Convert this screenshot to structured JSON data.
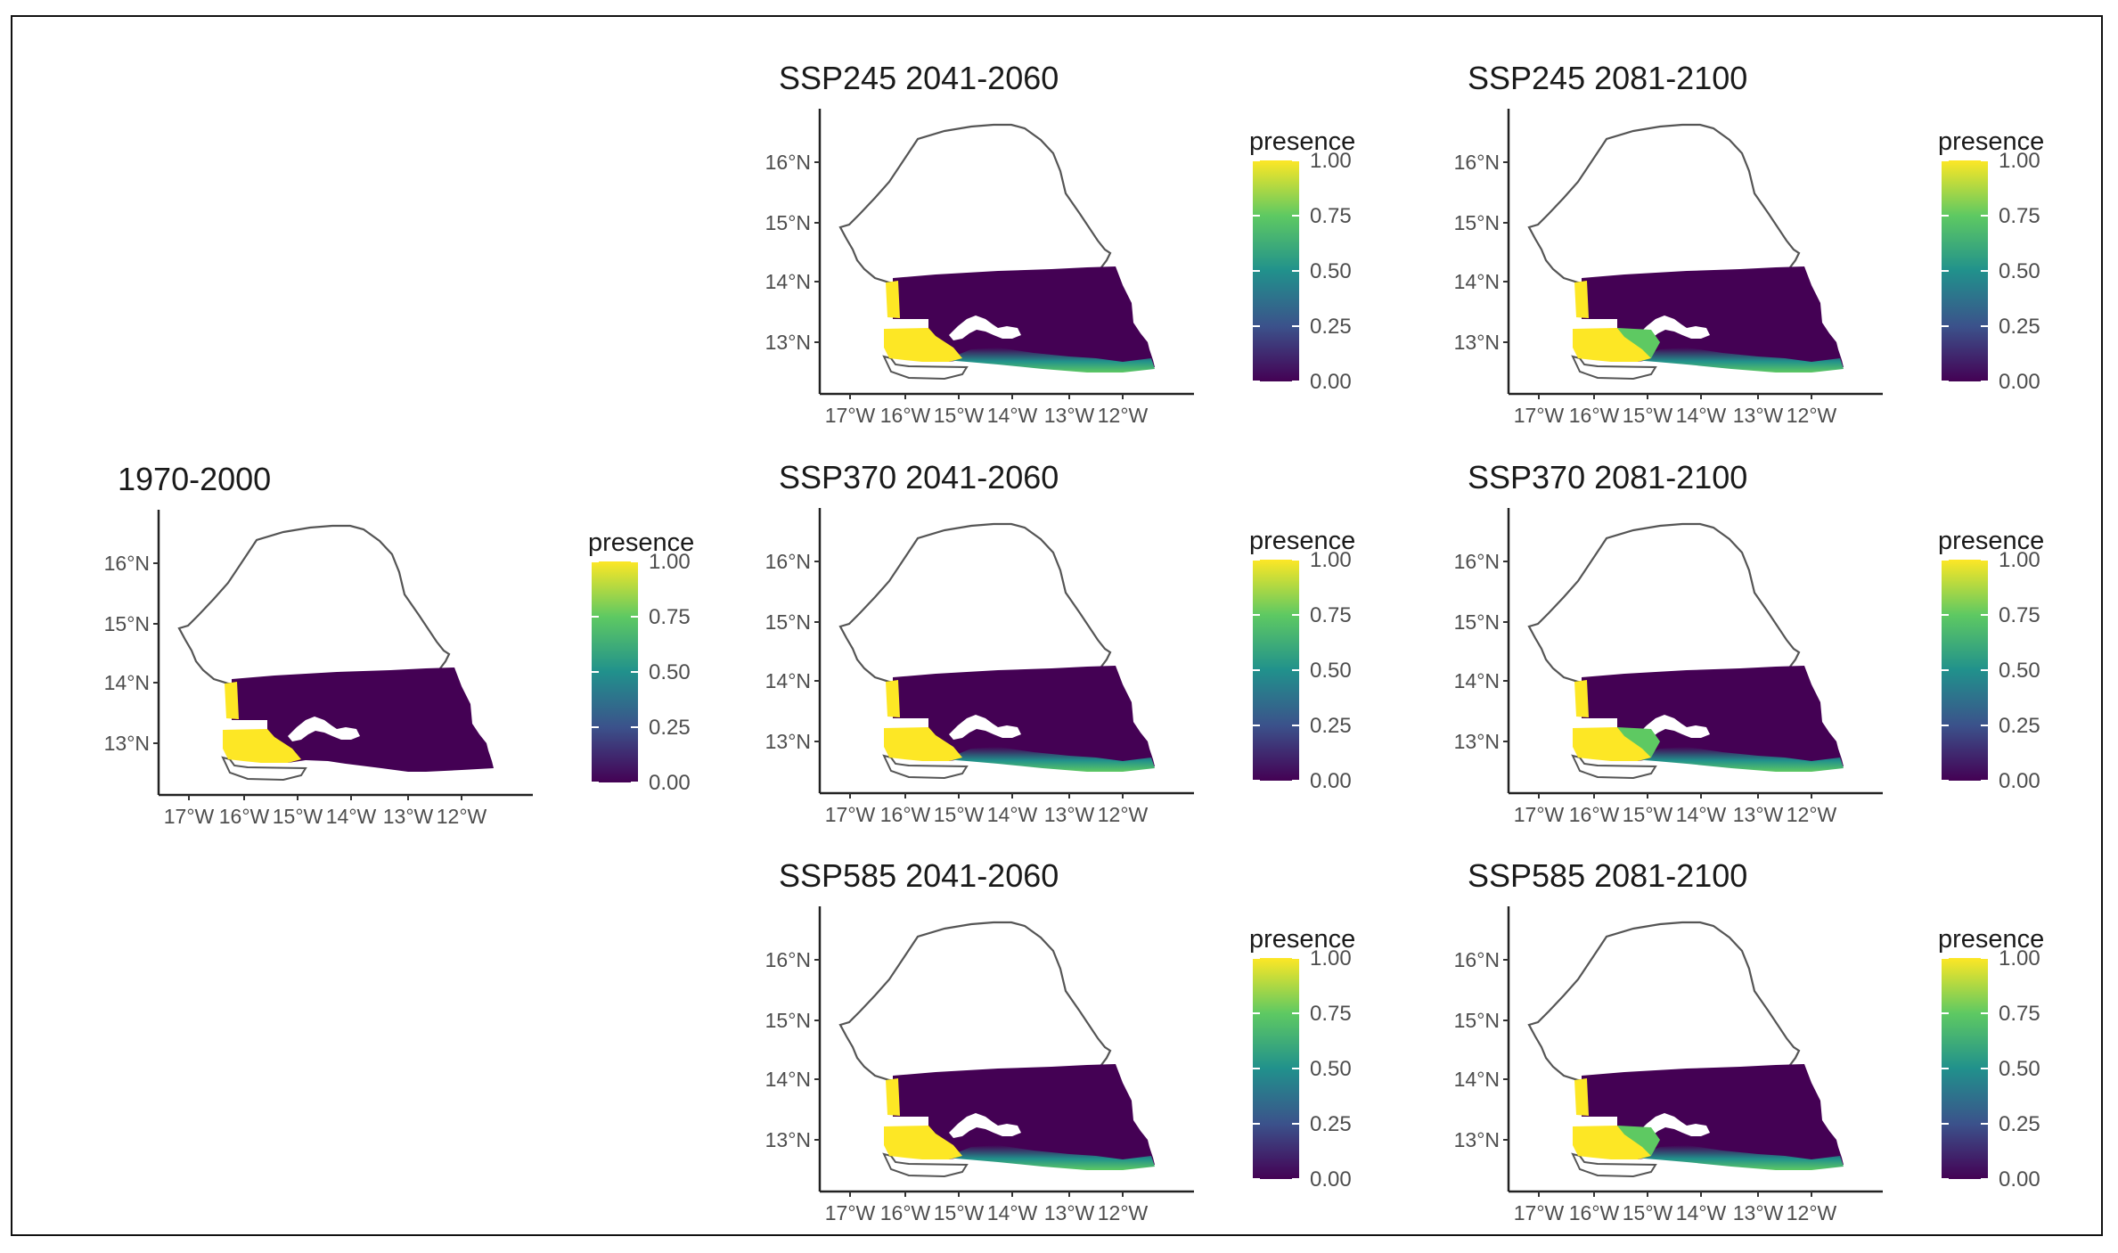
{
  "chart_data": {
    "type": "map",
    "region_shape": "Senegal",
    "legend_title": "presence",
    "legend_ticks": [
      "1.00",
      "0.75",
      "0.50",
      "0.25",
      "0.00"
    ],
    "colorscale": [
      "#440154",
      "#3b528b",
      "#21918c",
      "#5ec962",
      "#fde725"
    ],
    "y_ticks": [
      "16°N",
      "15°N",
      "14°N",
      "13°N"
    ],
    "x_ticks": [
      "17°W",
      "16°W",
      "15°W",
      "14°W",
      "13°W",
      "12°W"
    ],
    "panels": [
      {
        "title": "1970-2000",
        "presence_level": 0
      },
      {
        "title": "SSP245 2041-2060",
        "presence_level": 1
      },
      {
        "title": "SSP245 2081-2100",
        "presence_level": 2
      },
      {
        "title": "SSP370 2041-2060",
        "presence_level": 1
      },
      {
        "title": "SSP370 2081-2100",
        "presence_level": 2
      },
      {
        "title": "SSP585 2041-2060",
        "presence_level": 1
      },
      {
        "title": "SSP585 2081-2100",
        "presence_level": 2
      }
    ]
  }
}
